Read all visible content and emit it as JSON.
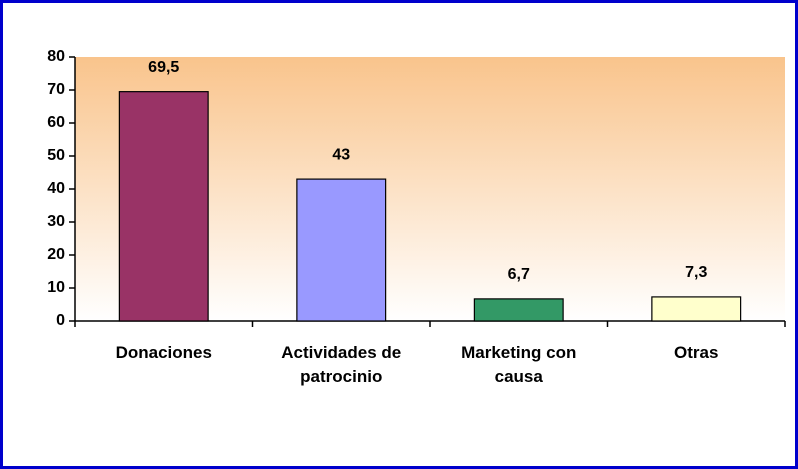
{
  "chart_data": {
    "type": "bar",
    "categories": [
      "Donaciones",
      "Actividades de patrocinio",
      "Marketing con causa",
      "Otras"
    ],
    "values": [
      69.5,
      43,
      6.7,
      7.3
    ],
    "value_labels": [
      "69,5",
      "43",
      "6,7",
      "7,3"
    ],
    "colors": [
      "#993366",
      "#9999ff",
      "#339966",
      "#ffffcc"
    ],
    "ylim": [
      0,
      80
    ],
    "yticks": [
      0,
      10,
      20,
      30,
      40,
      50,
      60,
      70,
      80
    ],
    "grid": false
  }
}
